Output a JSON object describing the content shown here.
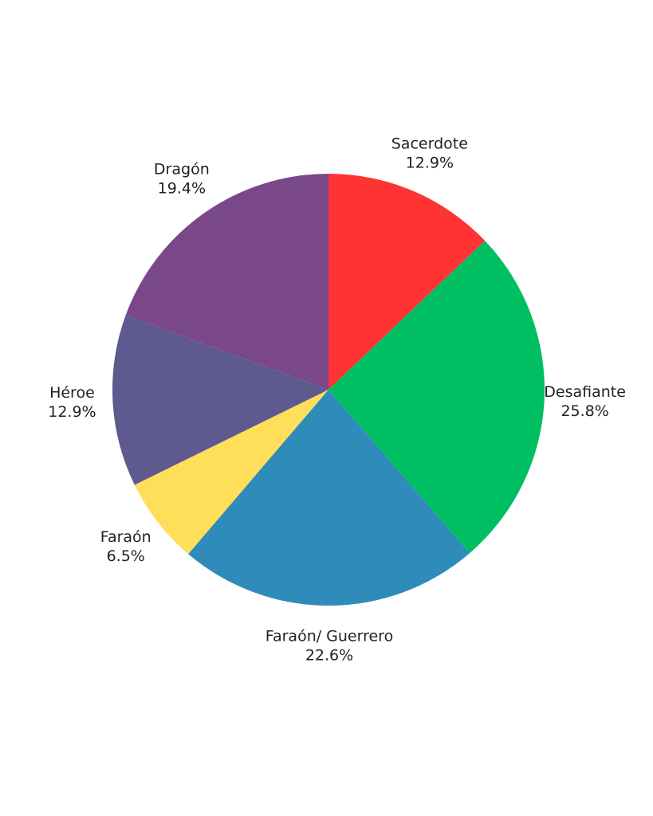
{
  "chart_data": {
    "type": "pie",
    "categories": [
      "Sacerdote",
      "Desafiante",
      "Faraón/ Guerrero",
      "Faraón",
      "Héroe",
      "Dragón"
    ],
    "values": [
      12.9,
      25.8,
      22.6,
      6.5,
      12.9,
      19.4
    ],
    "value_labels": [
      "12.9%",
      "25.8%",
      "22.6%",
      "6.5%",
      "12.9%",
      "19.4%"
    ],
    "colors": [
      "#ff3333",
      "#00bf63",
      "#2e8bba",
      "#ffde59",
      "#5e5a8f",
      "#7a4788"
    ]
  }
}
